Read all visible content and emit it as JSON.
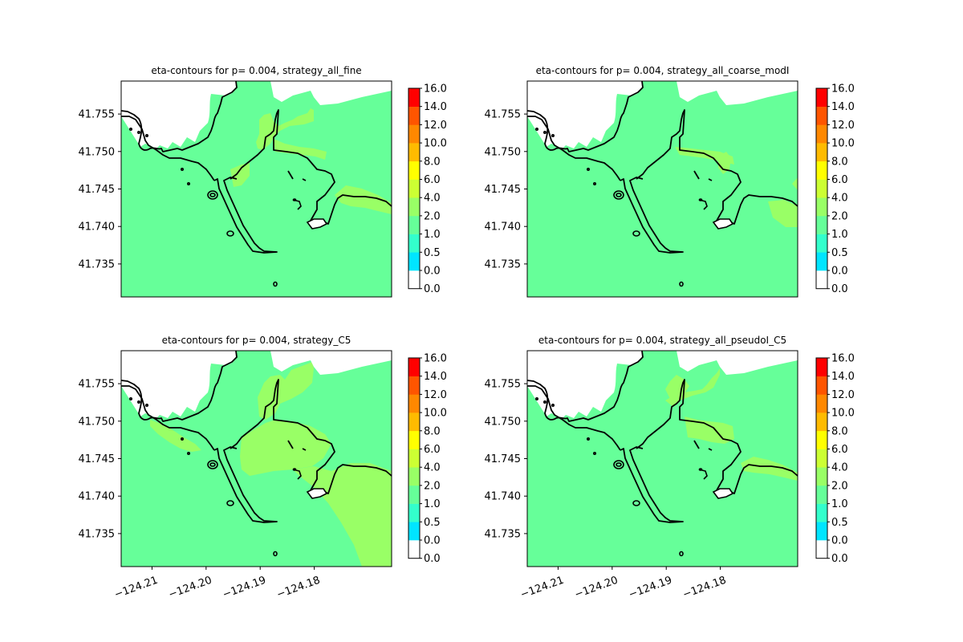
{
  "chart_data": [
    {
      "type": "heatmap",
      "title": "eta-contours for p= 0.004, strategy_all_fine",
      "xlabel": "",
      "ylabel": "",
      "xlim": [
        -124.2157,
        -124.1657
      ],
      "ylim": [
        41.7306,
        41.7594
      ],
      "xticks": [],
      "yticks": [
        "41.735",
        "41.740",
        "41.745",
        "41.750",
        "41.755"
      ],
      "background_level": "2.0-4.0 band (light green) over whole domain",
      "regions": [
        {
          "level": "4.0-6.0",
          "note": "north spit of bay entrance and band along northern shore"
        },
        {
          "level": "4.0-6.0",
          "note": "narrow band along eastern coastline"
        },
        {
          "level": "4.0-6.0",
          "note": "small patch at channel mouth"
        }
      ],
      "colorbar": {
        "levels": [
          "0.0",
          "0.0",
          "0.5",
          "1.0",
          "2.0",
          "4.0",
          "6.0",
          "8.0",
          "10.0",
          "12.0",
          "14.0",
          "16.0"
        ]
      }
    },
    {
      "type": "heatmap",
      "title": "eta-contours for p= 0.004, strategy_all_coarse_modI",
      "xlabel": "",
      "ylabel": "",
      "xlim": [
        -124.2157,
        -124.1657
      ],
      "ylim": [
        41.7306,
        41.7594
      ],
      "xticks": [],
      "yticks": [
        "41.735",
        "41.740",
        "41.745",
        "41.750",
        "41.755"
      ],
      "background_level": "2.0-4.0 band (light green) over whole domain",
      "regions": [
        {
          "level": "4.0-6.0",
          "note": "band along northern shore and small inner-harbor patch"
        },
        {
          "level": "4.0-6.0",
          "note": "block near eastern coastline"
        }
      ],
      "colorbar": {
        "levels": [
          "0.0",
          "0.0",
          "0.5",
          "1.0",
          "2.0",
          "4.0",
          "6.0",
          "8.0",
          "10.0",
          "12.0",
          "14.0",
          "16.0"
        ]
      }
    },
    {
      "type": "heatmap",
      "title": "eta-contours for p= 0.004, strategy_C5",
      "xlabel": "",
      "ylabel": "",
      "xlim": [
        -124.2157,
        -124.1657
      ],
      "ylim": [
        41.7306,
        41.7594
      ],
      "xticks": [
        "−124.21",
        "−124.20",
        "−124.19",
        "−124.18"
      ],
      "yticks": [
        "41.735",
        "41.740",
        "41.745",
        "41.750",
        "41.755"
      ],
      "background_level": "2.0-4.0 band (light green) over whole domain",
      "regions": [
        {
          "level": "4.0-6.0",
          "note": "harbor interior, north spit and large wedge in south-east"
        },
        {
          "level": "4.0-6.0",
          "note": "band along north-west coast"
        }
      ],
      "colorbar": {
        "levels": [
          "0.0",
          "0.0",
          "0.5",
          "1.0",
          "2.0",
          "4.0",
          "6.0",
          "8.0",
          "10.0",
          "12.0",
          "14.0",
          "16.0"
        ]
      }
    },
    {
      "type": "heatmap",
      "title": "eta-contours for p= 0.004, strategy_all_pseudoI_C5",
      "xlabel": "",
      "ylabel": "",
      "xlim": [
        -124.2157,
        -124.1657
      ],
      "ylim": [
        41.7306,
        41.7594
      ],
      "xticks": [
        "−124.21",
        "−124.20",
        "−124.19",
        "−124.18"
      ],
      "yticks": [
        "41.735",
        "41.740",
        "41.745",
        "41.750",
        "41.755"
      ],
      "background_level": "2.0-4.0 band (light green) over whole domain",
      "regions": [
        {
          "level": "4.0-6.0",
          "note": "north spit, inner-harbor patch and east coast band"
        }
      ],
      "colorbar": {
        "levels": [
          "0.0",
          "0.0",
          "0.5",
          "1.0",
          "2.0",
          "4.0",
          "6.0",
          "8.0",
          "10.0",
          "12.0",
          "14.0",
          "16.0"
        ]
      }
    }
  ],
  "colorbar_colors": [
    "#ffffff",
    "#00e5ff",
    "#33ffcc",
    "#66ff99",
    "#99ff66",
    "#ccff33",
    "#ffff00",
    "#ffbb00",
    "#ff8800",
    "#ff5500",
    "#ff0000"
  ],
  "colors": {
    "level_2_4": "#66ff99",
    "level_4_6": "#99ff66",
    "coastline": "#000000"
  }
}
